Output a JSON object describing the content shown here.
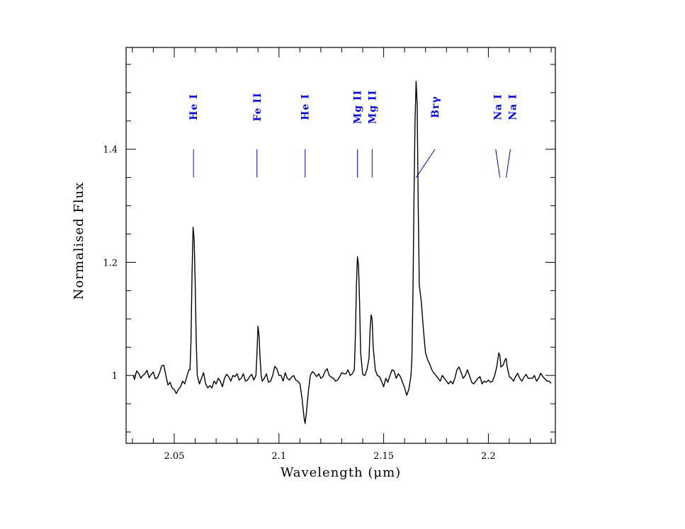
{
  "chart_data": {
    "type": "line",
    "title": "",
    "xlabel": "Wavelength (μm)",
    "ylabel": "Normalised Flux",
    "xlim": [
      2.027,
      2.232
    ],
    "ylim": [
      0.88,
      1.58
    ],
    "grid": false,
    "x_ticks": [
      {
        "value": 2.05,
        "label": "2.05"
      },
      {
        "value": 2.1,
        "label": "2.1"
      },
      {
        "value": 2.15,
        "label": "2.15"
      },
      {
        "value": 2.2,
        "label": "2.2"
      }
    ],
    "y_ticks": [
      {
        "value": 1.0,
        "label": "1"
      },
      {
        "value": 1.2,
        "label": "1.2"
      },
      {
        "value": 1.4,
        "label": "1.4"
      }
    ],
    "series": [
      {
        "color": "#000000",
        "points": [
          [
            2.0305,
            1.0
          ],
          [
            2.031,
            0.993
          ],
          [
            2.032,
            1.008
          ],
          [
            2.033,
            1.004
          ],
          [
            2.034,
            0.995
          ],
          [
            2.035,
            1.0
          ],
          [
            2.036,
            1.003
          ],
          [
            2.037,
            1.009
          ],
          [
            2.038,
            0.996
          ],
          [
            2.039,
            1.002
          ],
          [
            2.04,
            1.006
          ],
          [
            2.041,
            0.994
          ],
          [
            2.042,
            0.996
          ],
          [
            2.043,
            1.005
          ],
          [
            2.044,
            1.017
          ],
          [
            2.045,
            1.018
          ],
          [
            2.046,
            1.0
          ],
          [
            2.047,
            0.983
          ],
          [
            2.048,
            0.988
          ],
          [
            2.049,
            0.978
          ],
          [
            2.05,
            0.975
          ],
          [
            2.051,
            0.968
          ],
          [
            2.052,
            0.975
          ],
          [
            2.053,
            0.98
          ],
          [
            2.054,
            0.99
          ],
          [
            2.055,
            0.985
          ],
          [
            2.056,
            0.998
          ],
          [
            2.057,
            1.01
          ],
          [
            2.0575,
            1.01
          ],
          [
            2.058,
            1.06
          ],
          [
            2.0585,
            1.18
          ],
          [
            2.059,
            1.262
          ],
          [
            2.0595,
            1.24
          ],
          [
            2.06,
            1.16
          ],
          [
            2.0605,
            1.06
          ],
          [
            2.061,
            1.0
          ],
          [
            2.062,
            0.985
          ],
          [
            2.063,
            0.995
          ],
          [
            2.064,
            1.005
          ],
          [
            2.065,
            0.985
          ],
          [
            2.066,
            0.978
          ],
          [
            2.067,
            0.982
          ],
          [
            2.068,
            0.978
          ],
          [
            2.069,
            0.99
          ],
          [
            2.07,
            0.985
          ],
          [
            2.071,
            0.995
          ],
          [
            2.072,
            0.99
          ],
          [
            2.073,
            0.98
          ],
          [
            2.074,
            0.995
          ],
          [
            2.075,
            1.002
          ],
          [
            2.076,
            0.998
          ],
          [
            2.077,
            0.99
          ],
          [
            2.078,
            1.0
          ],
          [
            2.079,
            0.998
          ],
          [
            2.08,
            1.003
          ],
          [
            2.081,
            0.992
          ],
          [
            2.082,
            0.995
          ],
          [
            2.083,
            1.003
          ],
          [
            2.084,
            0.99
          ],
          [
            2.085,
            0.992
          ],
          [
            2.086,
            0.998
          ],
          [
            2.087,
            1.002
          ],
          [
            2.088,
            0.992
          ],
          [
            2.089,
            1.0
          ],
          [
            2.0895,
            1.04
          ],
          [
            2.09,
            1.087
          ],
          [
            2.0905,
            1.07
          ],
          [
            2.091,
            1.03
          ],
          [
            2.0915,
            1.0
          ],
          [
            2.092,
            0.99
          ],
          [
            2.093,
            0.995
          ],
          [
            2.094,
            1.003
          ],
          [
            2.095,
            0.988
          ],
          [
            2.096,
            0.99
          ],
          [
            2.097,
            1.0
          ],
          [
            2.098,
            1.016
          ],
          [
            2.099,
            1.012
          ],
          [
            2.1,
            1.0
          ],
          [
            2.101,
            1.0
          ],
          [
            2.102,
            0.99
          ],
          [
            2.103,
            1.005
          ],
          [
            2.104,
            0.995
          ],
          [
            2.105,
            0.992
          ],
          [
            2.106,
            0.997
          ],
          [
            2.107,
            1.0
          ],
          [
            2.108,
            0.992
          ],
          [
            2.109,
            0.99
          ],
          [
            2.11,
            0.985
          ],
          [
            2.111,
            0.96
          ],
          [
            2.112,
            0.925
          ],
          [
            2.1125,
            0.915
          ],
          [
            2.113,
            0.93
          ],
          [
            2.114,
            0.97
          ],
          [
            2.115,
            1.0
          ],
          [
            2.116,
            1.007
          ],
          [
            2.117,
            1.003
          ],
          [
            2.118,
            0.998
          ],
          [
            2.119,
            1.003
          ],
          [
            2.12,
            0.995
          ],
          [
            2.121,
            0.998
          ],
          [
            2.122,
            1.007
          ],
          [
            2.123,
            1.012
          ],
          [
            2.124,
            1.0
          ],
          [
            2.125,
            0.997
          ],
          [
            2.126,
            0.995
          ],
          [
            2.127,
            0.99
          ],
          [
            2.128,
            0.992
          ],
          [
            2.129,
            0.998
          ],
          [
            2.13,
            1.005
          ],
          [
            2.131,
            1.003
          ],
          [
            2.132,
            1.003
          ],
          [
            2.133,
            1.01
          ],
          [
            2.134,
            1.0
          ],
          [
            2.135,
            1.003
          ],
          [
            2.136,
            1.01
          ],
          [
            2.1365,
            1.07
          ],
          [
            2.137,
            1.16
          ],
          [
            2.1375,
            1.21
          ],
          [
            2.138,
            1.195
          ],
          [
            2.1385,
            1.13
          ],
          [
            2.139,
            1.04
          ],
          [
            2.14,
            1.002
          ],
          [
            2.141,
            1.0
          ],
          [
            2.142,
            1.01
          ],
          [
            2.143,
            1.03
          ],
          [
            2.1435,
            1.08
          ],
          [
            2.144,
            1.107
          ],
          [
            2.1445,
            1.1
          ],
          [
            2.145,
            1.05
          ],
          [
            2.146,
            1.01
          ],
          [
            2.147,
            1.0
          ],
          [
            2.148,
            0.998
          ],
          [
            2.149,
            0.99
          ],
          [
            2.15,
            0.98
          ],
          [
            2.151,
            0.995
          ],
          [
            2.152,
            0.988
          ],
          [
            2.153,
            1.0
          ],
          [
            2.154,
            1.01
          ],
          [
            2.155,
            1.008
          ],
          [
            2.156,
            0.995
          ],
          [
            2.157,
            1.003
          ],
          [
            2.158,
            0.998
          ],
          [
            2.159,
            0.988
          ],
          [
            2.16,
            0.978
          ],
          [
            2.161,
            0.965
          ],
          [
            2.162,
            0.975
          ],
          [
            2.163,
            0.998
          ],
          [
            2.1635,
            1.03
          ],
          [
            2.164,
            1.15
          ],
          [
            2.1645,
            1.32
          ],
          [
            2.165,
            1.45
          ],
          [
            2.1655,
            1.52
          ],
          [
            2.166,
            1.48
          ],
          [
            2.1665,
            1.3
          ],
          [
            2.167,
            1.16
          ],
          [
            2.168,
            1.13
          ],
          [
            2.169,
            1.08
          ],
          [
            2.17,
            1.04
          ],
          [
            2.171,
            1.028
          ],
          [
            2.172,
            1.02
          ],
          [
            2.173,
            1.01
          ],
          [
            2.174,
            1.004
          ],
          [
            2.175,
            1.0
          ],
          [
            2.176,
            0.995
          ],
          [
            2.177,
            0.99
          ],
          [
            2.178,
            1.0
          ],
          [
            2.179,
            0.995
          ],
          [
            2.18,
            0.99
          ],
          [
            2.181,
            0.985
          ],
          [
            2.182,
            0.99
          ],
          [
            2.183,
            0.985
          ],
          [
            2.184,
            0.995
          ],
          [
            2.185,
            1.01
          ],
          [
            2.186,
            1.015
          ],
          [
            2.187,
            1.005
          ],
          [
            2.188,
            0.995
          ],
          [
            2.189,
            1.0
          ],
          [
            2.19,
            1.01
          ],
          [
            2.191,
            1.0
          ],
          [
            2.192,
            0.988
          ],
          [
            2.193,
            0.985
          ],
          [
            2.194,
            0.99
          ],
          [
            2.195,
            0.995
          ],
          [
            2.196,
            0.998
          ],
          [
            2.197,
            0.985
          ],
          [
            2.198,
            0.99
          ],
          [
            2.199,
            0.988
          ],
          [
            2.2,
            0.992
          ],
          [
            2.201,
            0.988
          ],
          [
            2.202,
            0.99
          ],
          [
            2.203,
            1.0
          ],
          [
            2.204,
            1.015
          ],
          [
            2.205,
            1.04
          ],
          [
            2.2055,
            1.035
          ],
          [
            2.206,
            1.015
          ],
          [
            2.207,
            1.018
          ],
          [
            2.208,
            1.028
          ],
          [
            2.2085,
            1.03
          ],
          [
            2.209,
            1.015
          ],
          [
            2.21,
            0.998
          ],
          [
            2.211,
            0.995
          ],
          [
            2.212,
            0.99
          ],
          [
            2.213,
            0.998
          ],
          [
            2.214,
            1.004
          ],
          [
            2.215,
            0.995
          ],
          [
            2.216,
            0.99
          ],
          [
            2.217,
            0.997
          ],
          [
            2.218,
            1.002
          ],
          [
            2.219,
            0.995
          ],
          [
            2.22,
            0.995
          ],
          [
            2.221,
            0.995
          ],
          [
            2.222,
            1.0
          ],
          [
            2.223,
            0.99
          ],
          [
            2.224,
            0.995
          ],
          [
            2.225,
            1.004
          ],
          [
            2.226,
            0.998
          ],
          [
            2.227,
            0.994
          ],
          [
            2.228,
            0.99
          ],
          [
            2.229,
            0.99
          ],
          [
            2.23,
            0.986
          ]
        ]
      }
    ],
    "annotations": [
      {
        "label": "He I",
        "label_x": 2.0592,
        "marker": [
          [
            2.0592,
            1.4
          ],
          [
            2.0592,
            1.35
          ]
        ]
      },
      {
        "label": "Fe II",
        "label_x": 2.0895,
        "marker": [
          [
            2.0895,
            1.4
          ],
          [
            2.0895,
            1.35
          ]
        ]
      },
      {
        "label": "He I",
        "label_x": 2.1125,
        "marker": [
          [
            2.1125,
            1.4
          ],
          [
            2.1125,
            1.35
          ]
        ]
      },
      {
        "label": "Mg II",
        "label_x": 2.1375,
        "marker": [
          [
            2.1375,
            1.4
          ],
          [
            2.1375,
            1.35
          ]
        ]
      },
      {
        "label": "Mg II",
        "label_x": 2.1445,
        "marker": [
          [
            2.1445,
            1.4
          ],
          [
            2.1445,
            1.35
          ]
        ]
      },
      {
        "label": "Brγ",
        "label_x": 2.1745,
        "marker": [
          [
            2.1745,
            1.4
          ],
          [
            2.1655,
            1.35
          ]
        ]
      },
      {
        "label": "Na I",
        "label_x": 2.2045,
        "marker": [
          [
            2.2035,
            1.4
          ],
          [
            2.2055,
            1.35
          ]
        ]
      },
      {
        "label": "Na I",
        "label_x": 2.2115,
        "marker": [
          [
            2.2105,
            1.4
          ],
          [
            2.2085,
            1.35
          ]
        ]
      }
    ],
    "annotation_color": "#0000ff"
  }
}
